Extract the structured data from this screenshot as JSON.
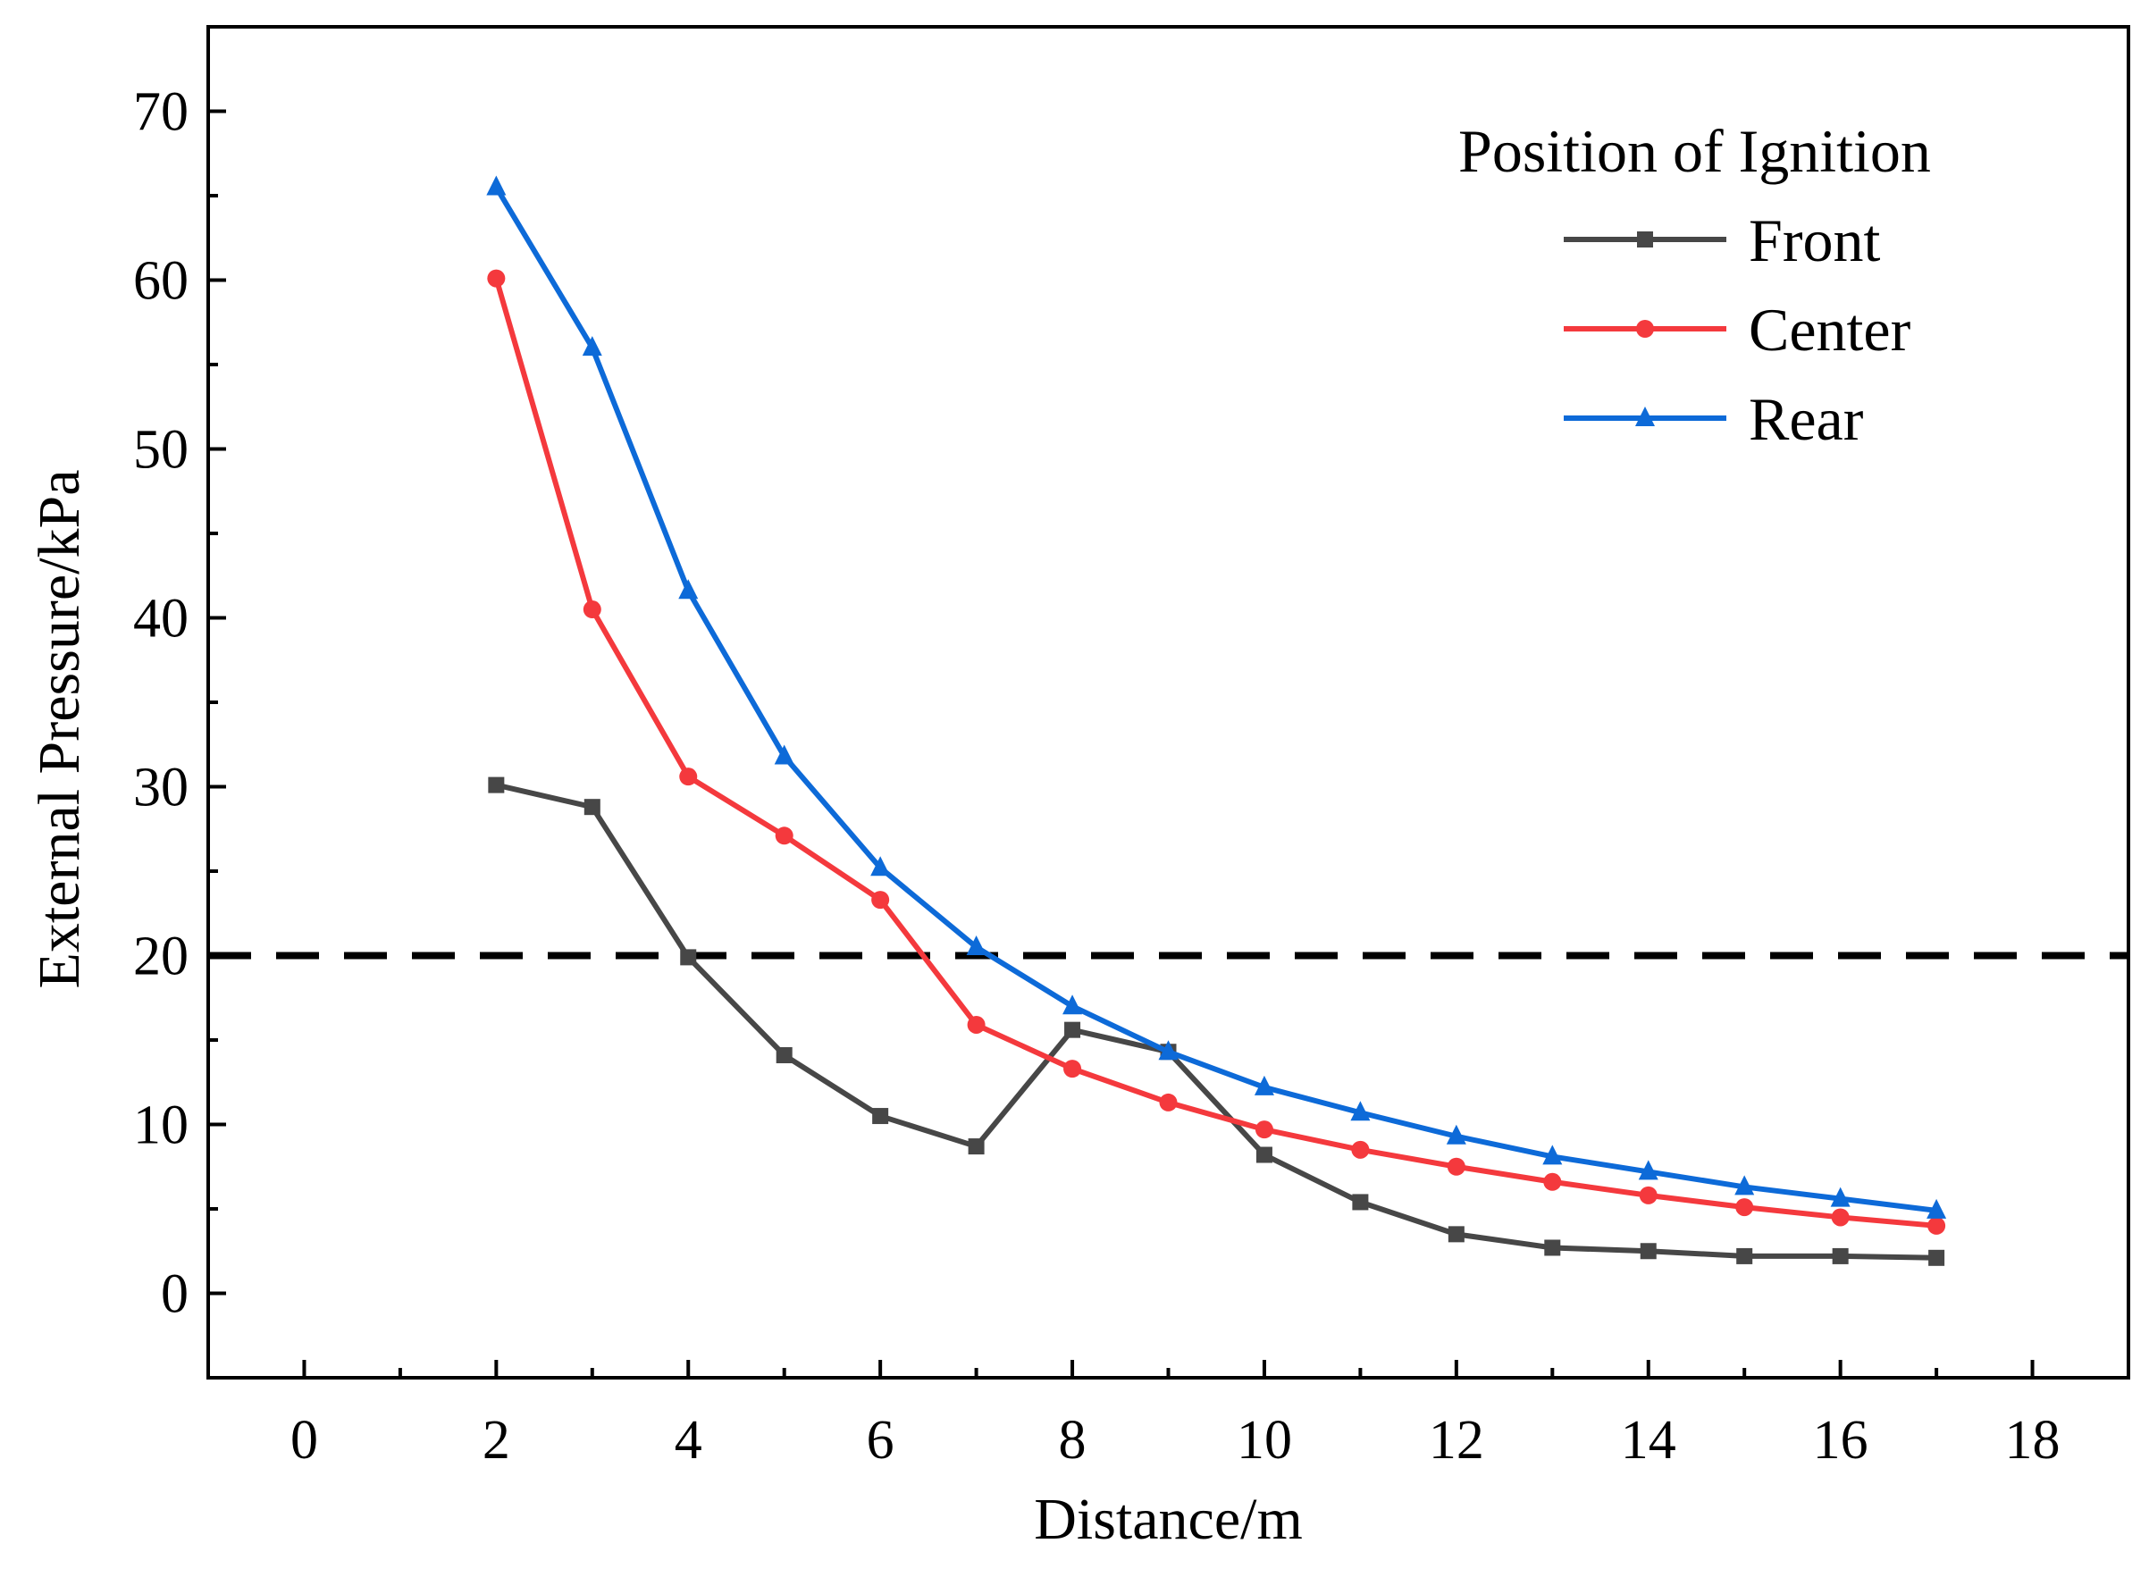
{
  "chart_data": {
    "type": "line",
    "xlabel": "Distance/m",
    "ylabel": "External Pressure/kPa",
    "xlim": [
      -1,
      19
    ],
    "ylim": [
      -5,
      75
    ],
    "xticks": [
      0,
      2,
      4,
      6,
      8,
      10,
      12,
      14,
      16,
      18
    ],
    "yticks": [
      0,
      10,
      20,
      30,
      40,
      50,
      60,
      70
    ],
    "legend": {
      "title": "Position of Ignition",
      "placement": "top-right"
    },
    "reference_line": {
      "y": 20,
      "style": "dashed",
      "color": "#000000"
    },
    "x": [
      2,
      3,
      4,
      5,
      6,
      7,
      8,
      9,
      10,
      11,
      12,
      13,
      14,
      15,
      16,
      17
    ],
    "series": [
      {
        "name": "Front",
        "color": "#474747",
        "marker": "square",
        "values": [
          30.1,
          28.8,
          19.9,
          14.1,
          10.5,
          8.7,
          15.6,
          14.3,
          8.2,
          5.4,
          3.5,
          2.7,
          2.5,
          2.2,
          2.2,
          2.1
        ]
      },
      {
        "name": "Center",
        "color": "#f4393d",
        "marker": "circle",
        "values": [
          60.1,
          40.5,
          30.6,
          27.1,
          23.3,
          15.9,
          13.3,
          11.3,
          9.7,
          8.5,
          7.5,
          6.6,
          5.8,
          5.1,
          4.5,
          4.0
        ]
      },
      {
        "name": "Rear",
        "color": "#0d6ad8",
        "marker": "triangle",
        "values": [
          65.5,
          56.0,
          41.6,
          31.8,
          25.2,
          20.5,
          17.0,
          14.3,
          12.2,
          10.7,
          9.3,
          8.1,
          7.2,
          6.3,
          5.6,
          4.9
        ]
      }
    ]
  }
}
